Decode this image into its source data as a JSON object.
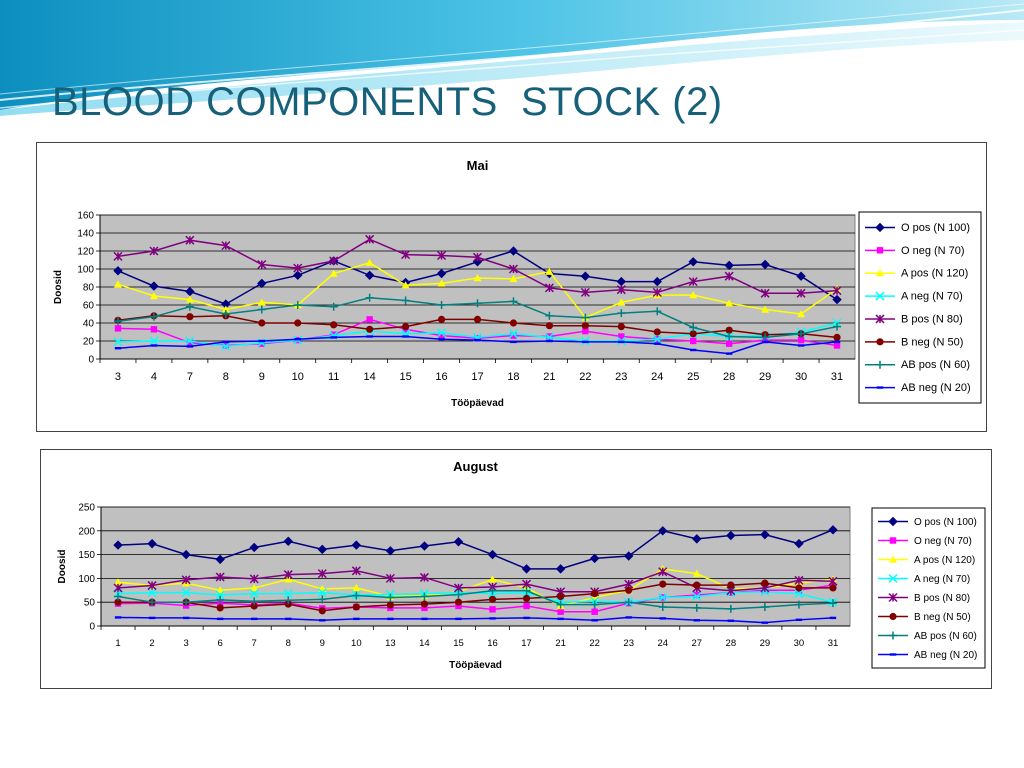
{
  "slide_title": "BLOOD COMPONENTS  STOCK (2)",
  "chart_data": [
    {
      "type": "line",
      "title": "Mai",
      "xlabel": "Tööpäevad",
      "ylabel": "Doosid",
      "ylim": [
        0,
        160
      ],
      "yticks": [
        0,
        20,
        40,
        60,
        80,
        100,
        120,
        140,
        160
      ],
      "grid": true,
      "legend_position": "right",
      "plot_background": "#c0c0c0",
      "categories": [
        "3",
        "4",
        "7",
        "8",
        "9",
        "10",
        "11",
        "14",
        "15",
        "16",
        "17",
        "18",
        "21",
        "22",
        "23",
        "24",
        "25",
        "28",
        "29",
        "30",
        "31"
      ],
      "series": [
        {
          "name": "O pos (N 100)",
          "color": "#000080",
          "marker": "diamond",
          "values": [
            98,
            81,
            75,
            61,
            84,
            93,
            109,
            93,
            85,
            95,
            108,
            120,
            95,
            92,
            86,
            86,
            108,
            104,
            105,
            92,
            66
          ]
        },
        {
          "name": "O neg (N 70)",
          "color": "#ff00ff",
          "marker": "square",
          "values": [
            34,
            33,
            18,
            15,
            17,
            21,
            27,
            44,
            33,
            26,
            23,
            26,
            25,
            31,
            25,
            22,
            20,
            17,
            21,
            21,
            15
          ]
        },
        {
          "name": "A pos (N 120)",
          "color": "#ffff00",
          "marker": "triangle",
          "values": [
            83,
            70,
            66,
            55,
            63,
            60,
            95,
            107,
            82,
            84,
            90,
            89,
            97,
            46,
            63,
            71,
            71,
            62,
            55,
            50,
            78
          ]
        },
        {
          "name": "A neg (N 70)",
          "color": "#00ffff",
          "marker": "x",
          "values": [
            19,
            20,
            20,
            14,
            18,
            21,
            26,
            31,
            28,
            29,
            24,
            28,
            24,
            20,
            20,
            22,
            28,
            25,
            26,
            30,
            40
          ]
        },
        {
          "name": "B pos (N 80)",
          "color": "#800080",
          "marker": "star",
          "values": [
            114,
            120,
            132,
            126,
            105,
            101,
            109,
            133,
            116,
            115,
            113,
            100,
            79,
            74,
            77,
            74,
            86,
            92,
            73,
            73,
            76
          ]
        },
        {
          "name": "B neg (N 50)",
          "color": "#800000",
          "marker": "circle",
          "values": [
            43,
            48,
            47,
            48,
            40,
            40,
            38,
            33,
            36,
            44,
            44,
            40,
            37,
            37,
            36,
            30,
            28,
            32,
            27,
            28,
            24
          ]
        },
        {
          "name": "AB pos (N 60)",
          "color": "#008080",
          "marker": "plus",
          "values": [
            42,
            47,
            58,
            50,
            55,
            60,
            58,
            68,
            65,
            60,
            62,
            64,
            48,
            46,
            51,
            53,
            35,
            25,
            24,
            28,
            36
          ]
        },
        {
          "name": "AB neg (N 20)",
          "color": "#0000ff",
          "marker": "dash",
          "values": [
            12,
            15,
            14,
            19,
            20,
            22,
            24,
            25,
            25,
            22,
            21,
            19,
            20,
            19,
            19,
            17,
            10,
            6,
            19,
            15,
            19
          ]
        }
      ]
    },
    {
      "type": "line",
      "title": "August",
      "xlabel": "Tööpäevad",
      "ylabel": "Doosid",
      "ylim": [
        0,
        250
      ],
      "yticks": [
        0,
        50,
        100,
        150,
        200,
        250
      ],
      "grid": true,
      "legend_position": "right",
      "plot_background": "#c0c0c0",
      "categories": [
        "1",
        "2",
        "3",
        "6",
        "7",
        "8",
        "9",
        "10",
        "13",
        "14",
        "15",
        "16",
        "17",
        "21",
        "22",
        "23",
        "24",
        "27",
        "28",
        "29",
        "30",
        "31"
      ],
      "series": [
        {
          "name": "O pos  (N 100)",
          "color": "#000080",
          "marker": "diamond",
          "values": [
            170,
            173,
            150,
            140,
            165,
            178,
            161,
            170,
            158,
            168,
            177,
            150,
            120,
            120,
            142,
            147,
            200,
            183,
            190,
            192,
            173,
            202
          ]
        },
        {
          "name": "O neg  (N 70)",
          "color": "#ff00ff",
          "marker": "square",
          "values": [
            47,
            48,
            43,
            48,
            44,
            48,
            37,
            40,
            38,
            38,
            42,
            35,
            42,
            30,
            30,
            48,
            60,
            65,
            70,
            75,
            75,
            86
          ]
        },
        {
          "name": "A pos  (N 120)",
          "color": "#ffff00",
          "marker": "triangle",
          "values": [
            92,
            85,
            90,
            75,
            80,
            98,
            78,
            80,
            62,
            64,
            72,
            98,
            80,
            42,
            60,
            75,
            120,
            110,
            78,
            80,
            90,
            98
          ]
        },
        {
          "name": "A neg  (N 70)",
          "color": "#00ffff",
          "marker": "x",
          "values": [
            68,
            70,
            70,
            65,
            68,
            68,
            70,
            65,
            66,
            68,
            70,
            68,
            70,
            50,
            52,
            50,
            60,
            62,
            70,
            72,
            68,
            50
          ]
        },
        {
          "name": "B pos  (N 80)",
          "color": "#800080",
          "marker": "star",
          "values": [
            80,
            85,
            97,
            103,
            99,
            108,
            110,
            116,
            100,
            102,
            80,
            82,
            88,
            72,
            72,
            88,
            114,
            80,
            74,
            80,
            96,
            94
          ]
        },
        {
          "name": "B neg  (N 50)",
          "color": "#800000",
          "marker": "circle",
          "values": [
            50,
            50,
            50,
            38,
            42,
            46,
            32,
            40,
            44,
            46,
            50,
            56,
            58,
            62,
            68,
            75,
            88,
            86,
            86,
            90,
            80,
            80
          ]
        },
        {
          "name": "AB pos  (N 60)",
          "color": "#008080",
          "marker": "plus",
          "values": [
            62,
            50,
            50,
            55,
            52,
            54,
            56,
            64,
            60,
            62,
            66,
            74,
            74,
            45,
            45,
            50,
            40,
            38,
            36,
            40,
            45,
            48
          ]
        },
        {
          "name": "AB neg  (N 20)",
          "color": "#0000ff",
          "marker": "dash",
          "values": [
            18,
            17,
            17,
            15,
            15,
            15,
            12,
            15,
            15,
            15,
            15,
            16,
            17,
            15,
            12,
            18,
            16,
            12,
            11,
            7,
            13,
            17
          ]
        }
      ]
    }
  ]
}
